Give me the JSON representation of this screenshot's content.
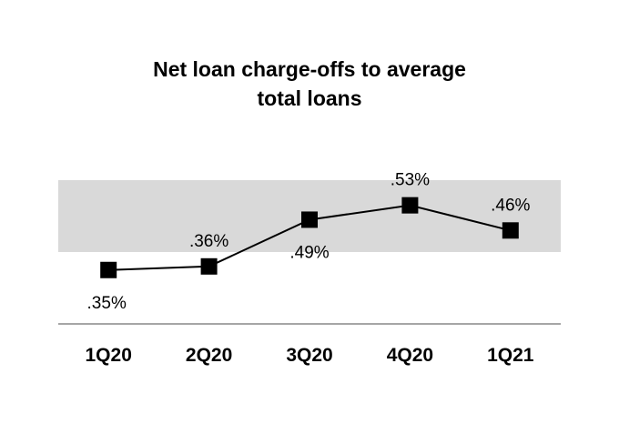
{
  "chart_data": {
    "type": "line",
    "title_lines": [
      "Net loan charge-offs to average",
      "total loans"
    ],
    "categories": [
      "1Q20",
      "2Q20",
      "3Q20",
      "4Q20",
      "1Q21"
    ],
    "values": [
      0.35,
      0.36,
      0.49,
      0.53,
      0.46
    ],
    "data_labels": [
      ".35%",
      ".36%",
      ".49%",
      ".53%",
      ".46%"
    ],
    "label_positions": [
      "below",
      "above",
      "below",
      "above",
      "above"
    ],
    "shaded_band": [
      0.4,
      0.6
    ],
    "ylim": [
      0.2,
      0.6
    ],
    "grid": false,
    "legend": "none",
    "colors": {
      "line": "#000000",
      "marker": "#000000",
      "band": "#d9d9d9",
      "axis": "#a6a6a6"
    }
  }
}
